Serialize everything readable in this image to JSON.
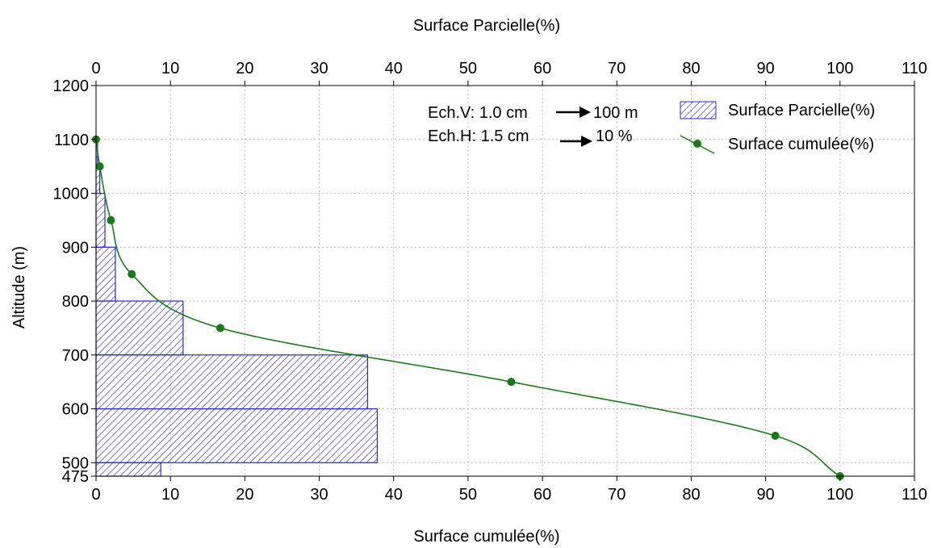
{
  "chart_data": {
    "type": "bar",
    "title": "",
    "top_xlabel": "Surface Parcielle(%)",
    "xlabel": "Surface cumulée(%)",
    "ylabel": "Altitude (m)",
    "xlim": [
      0,
      110
    ],
    "x_ticks": [
      0,
      10,
      20,
      30,
      40,
      50,
      60,
      70,
      80,
      90,
      100,
      110
    ],
    "ylim": [
      475,
      1200
    ],
    "y_ticks": [
      475,
      500,
      600,
      700,
      800,
      900,
      1000,
      1100,
      1200
    ],
    "grid": true,
    "legend_position": "top-right",
    "bars": {
      "name": "Surface Parcielle(%)",
      "color": "#2a2acc",
      "bins": [
        {
          "from": 475,
          "to": 500,
          "value": 8.7
        },
        {
          "from": 500,
          "to": 600,
          "value": 37.8
        },
        {
          "from": 600,
          "to": 700,
          "value": 36.5
        },
        {
          "from": 700,
          "to": 800,
          "value": 11.7
        },
        {
          "from": 800,
          "to": 900,
          "value": 2.6
        },
        {
          "from": 900,
          "to": 1000,
          "value": 1.2
        },
        {
          "from": 1000,
          "to": 1050,
          "value": 0.5
        },
        {
          "from": 1050,
          "to": 1100,
          "value": 0.2
        }
      ]
    },
    "line": {
      "name": "Surface cumulée(%)",
      "color": "#1a7a1a",
      "points": [
        {
          "x": 100,
          "y": 475
        },
        {
          "x": 91.3,
          "y": 550
        },
        {
          "x": 55.8,
          "y": 650
        },
        {
          "x": 16.7,
          "y": 750
        },
        {
          "x": 4.8,
          "y": 850
        },
        {
          "x": 2.0,
          "y": 950
        },
        {
          "x": 0.5,
          "y": 1050
        },
        {
          "x": 0.0,
          "y": 1100
        }
      ]
    },
    "annotations": [
      {
        "text_left": "Ech.V: 1.0 cm",
        "text_right": "100 m"
      },
      {
        "text_left": "Ech.H: 1.5 cm",
        "text_right": "10 %"
      }
    ]
  }
}
